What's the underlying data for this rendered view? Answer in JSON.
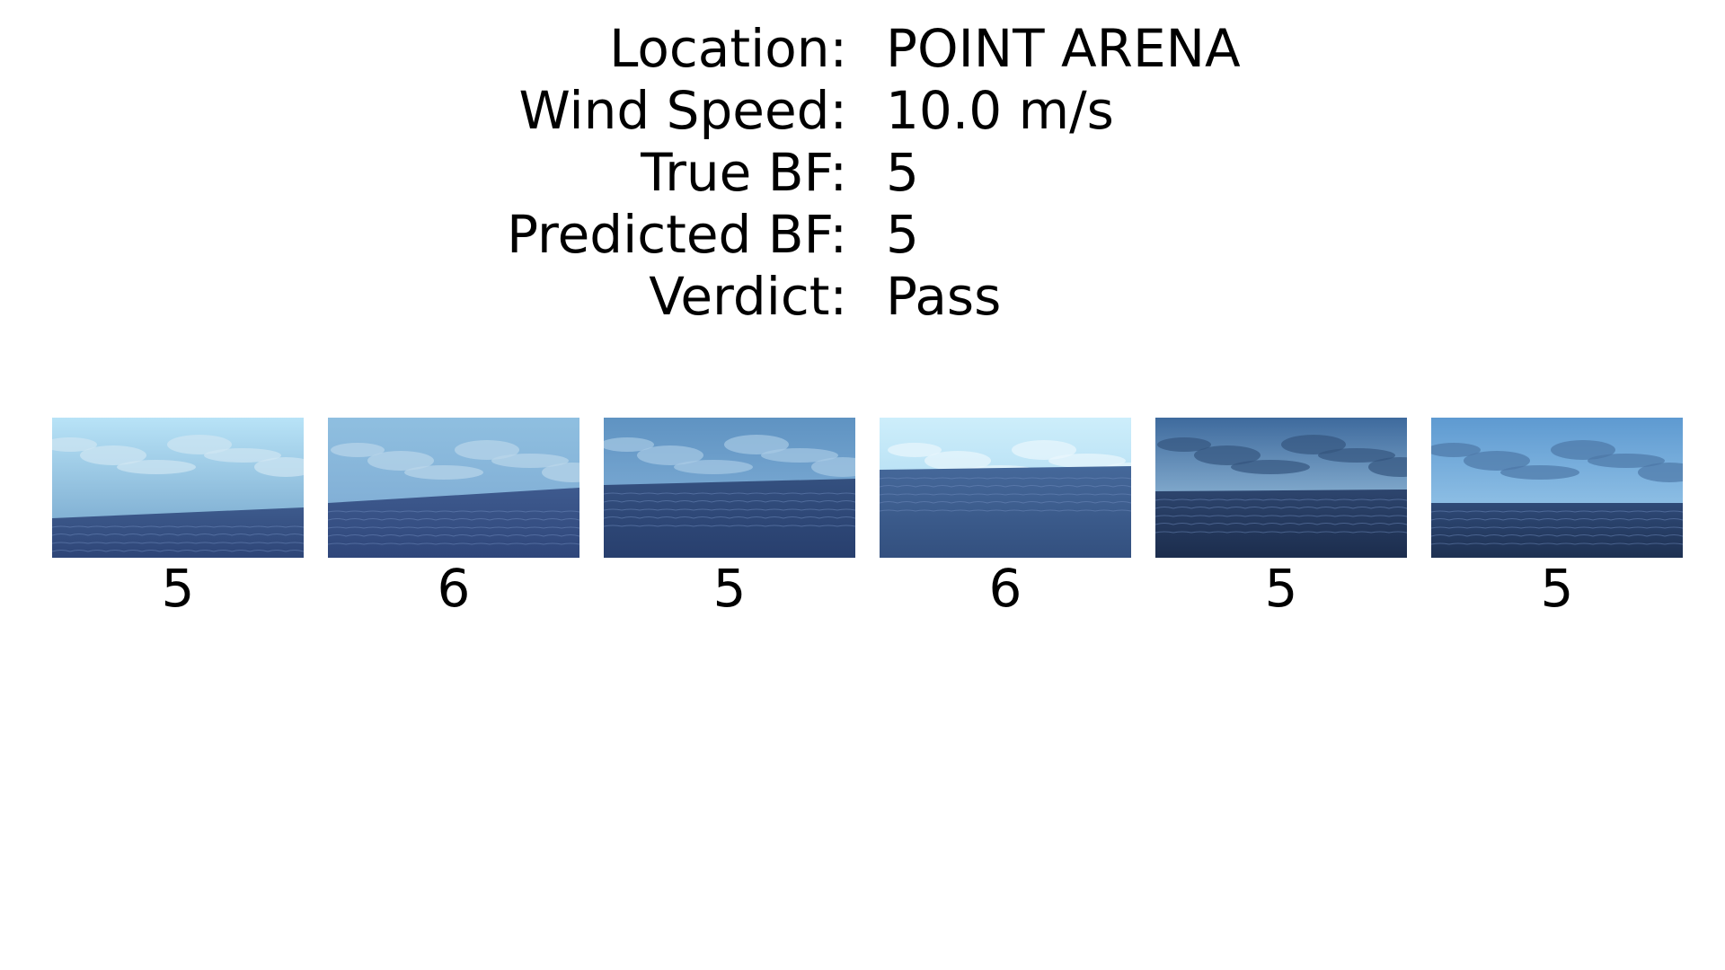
{
  "info": {
    "rows": [
      {
        "label": "Location:",
        "value": "POINT ARENA"
      },
      {
        "label": "Wind Speed:",
        "value": "10.0 m/s"
      },
      {
        "label": "True BF:",
        "value": "5"
      },
      {
        "label": "Predicted BF:",
        "value": "5"
      },
      {
        "label": "Verdict:",
        "value": "Pass"
      }
    ]
  },
  "images": [
    {
      "label": "5",
      "sky_top": "#b8e3f7",
      "sky_bottom": "#6e9fc7",
      "sea_top": "#3d5a8c",
      "sea_bottom": "#2e4577",
      "cloud": "#cfe6f2"
    },
    {
      "label": "6",
      "sky_top": "#8fbfe0",
      "sky_bottom": "#7aa6d0",
      "sea_top": "#3e5a8e",
      "sea_bottom": "#2f467a",
      "cloud": "#b9d6ea"
    },
    {
      "label": "5",
      "sky_top": "#5f93c2",
      "sky_bottom": "#8cb8de",
      "sea_top": "#34507f",
      "sea_bottom": "#283f6e",
      "cloud": "#a7c9e4"
    },
    {
      "label": "6",
      "sky_top": "#cdeefb",
      "sky_bottom": "#9fd0ec",
      "sea_top": "#45689a",
      "sea_bottom": "#33507f",
      "cloud": "#e9f6fc"
    },
    {
      "label": "5",
      "sky_top": "#3e6a9d",
      "sky_bottom": "#b7dcf2",
      "sea_top": "#2d456e",
      "sea_bottom": "#1c2d4d",
      "cloud": "#34557f"
    },
    {
      "label": "5",
      "sky_top": "#5e9ad1",
      "sky_bottom": "#a9d4f0",
      "sea_top": "#2f4a78",
      "sea_bottom": "#1e3152",
      "cloud": "#4d77a6"
    }
  ]
}
